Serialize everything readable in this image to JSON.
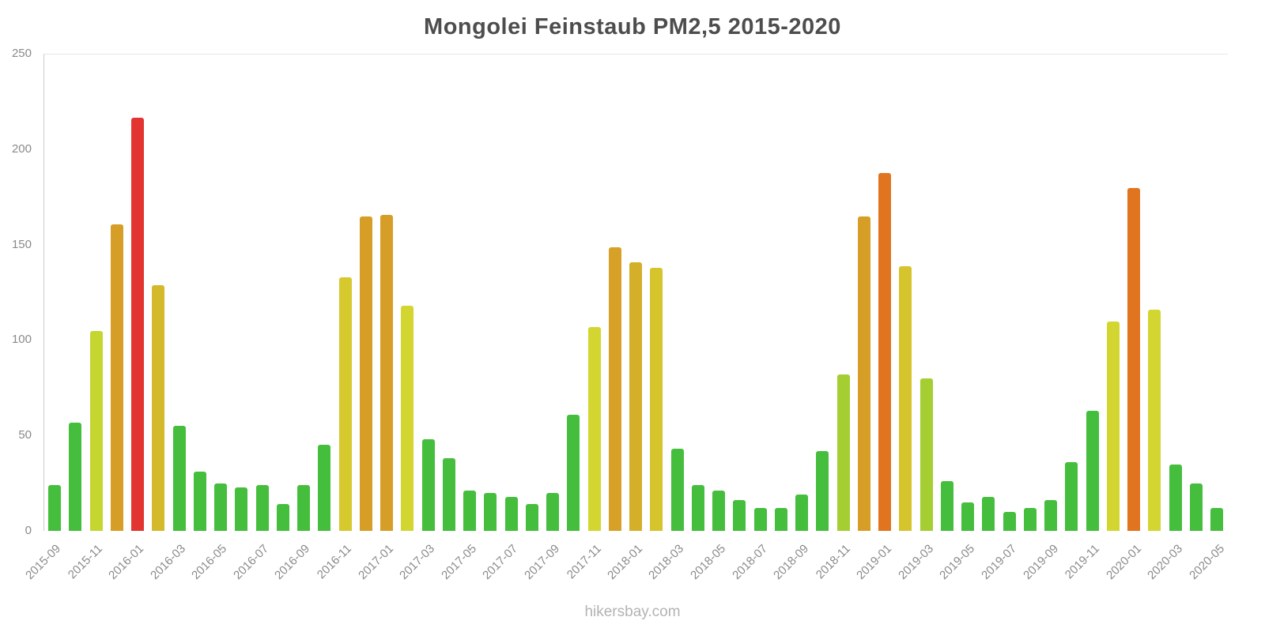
{
  "title": "Mongolei Feinstaub PM2,5 2015-2020",
  "watermark": "hikersbay.com",
  "chart_data": {
    "type": "bar",
    "title": "Mongolei Feinstaub PM2,5 2015-2020",
    "xlabel": "",
    "ylabel": "",
    "ylim": [
      0,
      250
    ],
    "yticks": [
      0,
      50,
      100,
      150,
      200,
      250
    ],
    "grid": false,
    "legend": false,
    "x": [
      "2015-09",
      "2015-10",
      "2015-11",
      "2015-12",
      "2016-01",
      "2016-02",
      "2016-03",
      "2016-04",
      "2016-05",
      "2016-06",
      "2016-07",
      "2016-08",
      "2016-09",
      "2016-10",
      "2016-11",
      "2016-12",
      "2017-01",
      "2017-02",
      "2017-03",
      "2017-04",
      "2017-05",
      "2017-06",
      "2017-07",
      "2017-08",
      "2017-09",
      "2017-10",
      "2017-11",
      "2017-12",
      "2018-01",
      "2018-02",
      "2018-03",
      "2018-04",
      "2018-05",
      "2018-06",
      "2018-07",
      "2018-08",
      "2018-09",
      "2018-10",
      "2018-11",
      "2018-12",
      "2019-01",
      "2019-02",
      "2019-03",
      "2019-04",
      "2019-05",
      "2019-06",
      "2019-07",
      "2019-08",
      "2019-09",
      "2019-10",
      "2019-11",
      "2019-12",
      "2020-01",
      "2020-02",
      "2020-03",
      "2020-04",
      "2020-05"
    ],
    "values": [
      24,
      57,
      105,
      161,
      217,
      129,
      55,
      31,
      25,
      23,
      24,
      14,
      24,
      45,
      133,
      165,
      166,
      118,
      48,
      38,
      21,
      20,
      18,
      14,
      20,
      61,
      107,
      149,
      141,
      138,
      43,
      24,
      21,
      16,
      12,
      12,
      19,
      42,
      82,
      165,
      188,
      139,
      80,
      26,
      15,
      18,
      10,
      12,
      16,
      36,
      63,
      110,
      180,
      116,
      35,
      25,
      12
    ],
    "colors": [
      "#45BE3D",
      "#45BE3D",
      "#C4D62F",
      "#D69E26",
      "#E23430",
      "#D4B92B",
      "#45BE3D",
      "#45BE3D",
      "#45BE3D",
      "#45BE3D",
      "#45BE3D",
      "#45BE3D",
      "#45BE3D",
      "#45BE3D",
      "#D6C92D",
      "#D69E26",
      "#D69E26",
      "#D3D530",
      "#45BE3D",
      "#45BE3D",
      "#45BE3D",
      "#45BE3D",
      "#45BE3D",
      "#45BE3D",
      "#45BE3D",
      "#45BE3D",
      "#D3D530",
      "#D7A127",
      "#D4AF2A",
      "#D5C42C",
      "#45BE3D",
      "#45BE3D",
      "#45BE3D",
      "#45BE3D",
      "#45BE3D",
      "#45BE3D",
      "#45BE3D",
      "#45BE3D",
      "#A4CE31",
      "#D69E26",
      "#E0741F",
      "#D5C42C",
      "#A4CE31",
      "#45BE3D",
      "#45BE3D",
      "#45BE3D",
      "#45BE3D",
      "#45BE3D",
      "#45BE3D",
      "#45BE3D",
      "#45BE3D",
      "#D3D530",
      "#E0741F",
      "#D3D530",
      "#45BE3D",
      "#45BE3D",
      "#45BE3D"
    ],
    "xticks_shown": [
      "2015-09",
      "2015-11",
      "2016-01",
      "2016-03",
      "2016-05",
      "2016-07",
      "2016-09",
      "2016-11",
      "2017-01",
      "2017-03",
      "2017-05",
      "2017-07",
      "2017-09",
      "2017-11",
      "2018-01",
      "2018-03",
      "2018-05",
      "2018-07",
      "2018-09",
      "2018-11",
      "2019-01",
      "2019-03",
      "2019-05",
      "2019-07",
      "2019-09",
      "2019-11",
      "2020-01",
      "2020-03",
      "2020-05"
    ]
  }
}
